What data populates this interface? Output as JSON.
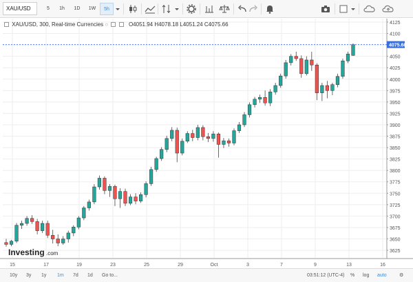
{
  "toolbar": {
    "symbol": "XAU/USD",
    "intervals": [
      "5",
      "1h",
      "1D",
      "1W",
      "5h"
    ],
    "active_interval": "5h"
  },
  "legend": {
    "title": "XAU/USD, 300, Real-time Currencies",
    "open": "O4051.94",
    "high": "H4078.18",
    "low": "L4051.24",
    "close": "C4075.66"
  },
  "chart_data": {
    "type": "candlestick",
    "last_price": 4075.66,
    "price_label": "4075.66",
    "ylim": [
      3610,
      4125
    ],
    "yticks": [
      3625,
      3650,
      3675,
      3700,
      3725,
      3750,
      3775,
      3800,
      3825,
      3850,
      3875,
      3900,
      3925,
      3950,
      3975,
      4000,
      4025,
      4050,
      4075,
      4100,
      4125
    ],
    "xtick_labels": [
      "15",
      "17",
      "19",
      "23",
      "25",
      "29",
      "Oct",
      "3",
      "7",
      "9",
      "13",
      "16"
    ],
    "colors": {
      "up": "#26a69a",
      "down": "#ef5350",
      "grid": "#eeeeee",
      "last_price_line": "#3a6fd8",
      "last_price_bg": "#3a6fd8"
    },
    "candles": [
      {
        "o": 3642,
        "h": 3650,
        "l": 3633,
        "c": 3638
      },
      {
        "o": 3638,
        "h": 3648,
        "l": 3634,
        "c": 3645
      },
      {
        "o": 3645,
        "h": 3685,
        "l": 3641,
        "c": 3680
      },
      {
        "o": 3680,
        "h": 3690,
        "l": 3672,
        "c": 3684
      },
      {
        "o": 3684,
        "h": 3700,
        "l": 3679,
        "c": 3695
      },
      {
        "o": 3695,
        "h": 3702,
        "l": 3683,
        "c": 3688
      },
      {
        "o": 3688,
        "h": 3694,
        "l": 3660,
        "c": 3668
      },
      {
        "o": 3668,
        "h": 3690,
        "l": 3663,
        "c": 3684
      },
      {
        "o": 3684,
        "h": 3690,
        "l": 3652,
        "c": 3658
      },
      {
        "o": 3658,
        "h": 3670,
        "l": 3640,
        "c": 3650
      },
      {
        "o": 3650,
        "h": 3660,
        "l": 3634,
        "c": 3641
      },
      {
        "o": 3641,
        "h": 3656,
        "l": 3637,
        "c": 3650
      },
      {
        "o": 3650,
        "h": 3668,
        "l": 3642,
        "c": 3663
      },
      {
        "o": 3663,
        "h": 3680,
        "l": 3656,
        "c": 3676
      },
      {
        "o": 3676,
        "h": 3700,
        "l": 3671,
        "c": 3696
      },
      {
        "o": 3696,
        "h": 3722,
        "l": 3691,
        "c": 3718
      },
      {
        "o": 3718,
        "h": 3736,
        "l": 3712,
        "c": 3731
      },
      {
        "o": 3731,
        "h": 3770,
        "l": 3726,
        "c": 3764
      },
      {
        "o": 3764,
        "h": 3789,
        "l": 3758,
        "c": 3783
      },
      {
        "o": 3783,
        "h": 3787,
        "l": 3748,
        "c": 3756
      },
      {
        "o": 3756,
        "h": 3770,
        "l": 3742,
        "c": 3765
      },
      {
        "o": 3765,
        "h": 3769,
        "l": 3722,
        "c": 3738
      },
      {
        "o": 3738,
        "h": 3761,
        "l": 3718,
        "c": 3754
      },
      {
        "o": 3754,
        "h": 3760,
        "l": 3722,
        "c": 3728
      },
      {
        "o": 3728,
        "h": 3748,
        "l": 3724,
        "c": 3742
      },
      {
        "o": 3742,
        "h": 3750,
        "l": 3726,
        "c": 3733
      },
      {
        "o": 3733,
        "h": 3752,
        "l": 3729,
        "c": 3747
      },
      {
        "o": 3747,
        "h": 3776,
        "l": 3741,
        "c": 3771
      },
      {
        "o": 3771,
        "h": 3808,
        "l": 3766,
        "c": 3802
      },
      {
        "o": 3802,
        "h": 3830,
        "l": 3797,
        "c": 3826
      },
      {
        "o": 3826,
        "h": 3851,
        "l": 3821,
        "c": 3846
      },
      {
        "o": 3846,
        "h": 3876,
        "l": 3840,
        "c": 3870
      },
      {
        "o": 3870,
        "h": 3895,
        "l": 3864,
        "c": 3888
      },
      {
        "o": 3888,
        "h": 3894,
        "l": 3818,
        "c": 3838
      },
      {
        "o": 3838,
        "h": 3870,
        "l": 3833,
        "c": 3864
      },
      {
        "o": 3864,
        "h": 3886,
        "l": 3860,
        "c": 3881
      },
      {
        "o": 3881,
        "h": 3889,
        "l": 3864,
        "c": 3872
      },
      {
        "o": 3872,
        "h": 3900,
        "l": 3866,
        "c": 3894
      },
      {
        "o": 3894,
        "h": 3899,
        "l": 3866,
        "c": 3874
      },
      {
        "o": 3874,
        "h": 3882,
        "l": 3862,
        "c": 3870
      },
      {
        "o": 3870,
        "h": 3886,
        "l": 3863,
        "c": 3880
      },
      {
        "o": 3880,
        "h": 3883,
        "l": 3828,
        "c": 3857
      },
      {
        "o": 3857,
        "h": 3871,
        "l": 3849,
        "c": 3865
      },
      {
        "o": 3865,
        "h": 3870,
        "l": 3852,
        "c": 3860
      },
      {
        "o": 3860,
        "h": 3892,
        "l": 3855,
        "c": 3887
      },
      {
        "o": 3887,
        "h": 3906,
        "l": 3882,
        "c": 3900
      },
      {
        "o": 3900,
        "h": 3928,
        "l": 3895,
        "c": 3922
      },
      {
        "o": 3922,
        "h": 3949,
        "l": 3916,
        "c": 3944
      },
      {
        "o": 3944,
        "h": 3961,
        "l": 3938,
        "c": 3956
      },
      {
        "o": 3956,
        "h": 3966,
        "l": 3948,
        "c": 3960
      },
      {
        "o": 3960,
        "h": 3975,
        "l": 3942,
        "c": 3948
      },
      {
        "o": 3948,
        "h": 3978,
        "l": 3941,
        "c": 3972
      },
      {
        "o": 3972,
        "h": 3992,
        "l": 3966,
        "c": 3986
      },
      {
        "o": 3986,
        "h": 4012,
        "l": 3981,
        "c": 4007
      },
      {
        "o": 4007,
        "h": 4042,
        "l": 4001,
        "c": 4036
      },
      {
        "o": 4036,
        "h": 4055,
        "l": 4030,
        "c": 4050
      },
      {
        "o": 4050,
        "h": 4060,
        "l": 4040,
        "c": 4045
      },
      {
        "o": 4045,
        "h": 4052,
        "l": 4003,
        "c": 4012
      },
      {
        "o": 4012,
        "h": 4050,
        "l": 4008,
        "c": 4042
      },
      {
        "o": 4042,
        "h": 4060,
        "l": 4018,
        "c": 4031
      },
      {
        "o": 4031,
        "h": 4035,
        "l": 3954,
        "c": 3970
      },
      {
        "o": 3970,
        "h": 3992,
        "l": 3952,
        "c": 3986
      },
      {
        "o": 3986,
        "h": 3996,
        "l": 3958,
        "c": 3975
      },
      {
        "o": 3975,
        "h": 3992,
        "l": 3965,
        "c": 3988
      },
      {
        "o": 3988,
        "h": 4012,
        "l": 3982,
        "c": 4006
      },
      {
        "o": 4006,
        "h": 4045,
        "l": 4001,
        "c": 4040
      },
      {
        "o": 4040,
        "h": 4060,
        "l": 4035,
        "c": 4055
      },
      {
        "o": 4051.94,
        "h": 4078.18,
        "l": 4051.24,
        "c": 4075.66
      }
    ]
  },
  "bottombar": {
    "ranges": [
      "10y",
      "3y",
      "1y",
      "1m",
      "7d",
      "1d",
      "Go to..."
    ],
    "active_range": "1m",
    "clock": "03:51:12 (UTC-4)",
    "pct": "%",
    "log": "log",
    "auto": "auto"
  },
  "logo": {
    "text": "Investing",
    "suffix": ".com"
  }
}
